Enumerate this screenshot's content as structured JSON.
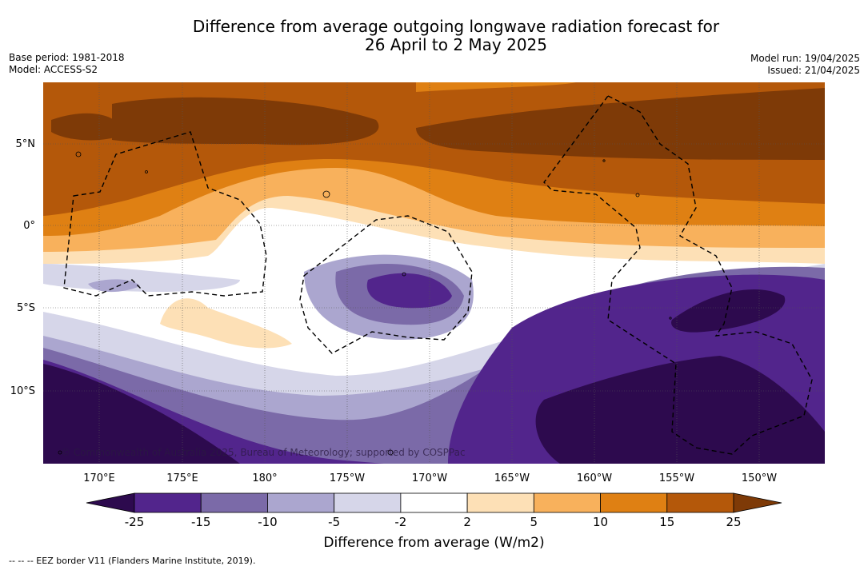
{
  "title_line1": "Difference from average outgoing longwave radiation forecast for",
  "title_line2": "26 April to 2 May 2025",
  "base_period": "Base period: 1981-2018",
  "model": "Model: ACCESS-S2",
  "model_run": "Model run: 19/04/2025",
  "issued": "Issued: 21/04/2025",
  "lat_labels": [
    "5°N",
    "0°",
    "5°S",
    "10°S"
  ],
  "lon_labels": [
    "170°E",
    "175°E",
    "180°",
    "175°W",
    "170°W",
    "165°W",
    "160°W",
    "155°W",
    "150°W"
  ],
  "copyright": "© Commonwealth of Australia 2025, Bureau of Meteorology; supported by COSPPac",
  "colorbar": {
    "ticks": [
      "-25",
      "-15",
      "-10",
      "-5",
      "-2",
      "2",
      "5",
      "10",
      "15",
      "25"
    ],
    "colors": [
      "#2d0a4e",
      "#52258c",
      "#7b6aa8",
      "#aba6cf",
      "#d6d6e9",
      "#ffffff",
      "#fde0b6",
      "#f8b15c",
      "#df8013",
      "#b4580a",
      "#7e3a07"
    ],
    "label": "Difference from average (W/m2)"
  },
  "footer": "--  --  -- EEZ border V11 (Flanders Marine Institute, 2019)."
}
